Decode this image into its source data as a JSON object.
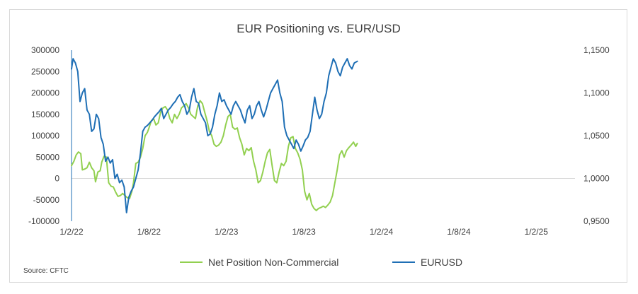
{
  "chart_data": {
    "type": "line",
    "title": "EUR Positioning vs. EUR/USD",
    "source": "Source: CFTC",
    "x_ticks": [
      "1/2/22",
      "1/8/22",
      "1/2/23",
      "1/8/23",
      "1/2/24",
      "1/8/24",
      "1/2/25"
    ],
    "y_left": {
      "ticks": [
        "300000",
        "250000",
        "200000",
        "150000",
        "100000",
        "50000",
        "0",
        "-50000",
        "-100000"
      ],
      "range": [
        -100000,
        300000
      ]
    },
    "y_right": {
      "ticks": [
        "1,1500",
        "1,1000",
        "1,0500",
        "1,0000",
        "0,9500"
      ],
      "range": [
        0.95,
        1.15
      ]
    },
    "legend_position": "bottom",
    "series": [
      {
        "name": "Net Position Non-Commercial",
        "axis": "left",
        "color": "#92d050",
        "x": [
          0,
          0.03,
          0.06,
          0.09,
          0.12,
          0.14,
          0.17,
          0.2,
          0.23,
          0.26,
          0.29,
          0.31,
          0.34,
          0.37,
          0.39,
          0.42,
          0.45,
          0.48,
          0.51,
          0.54,
          0.57,
          0.6,
          0.63,
          0.66,
          0.69,
          0.72,
          0.75,
          0.78,
          0.8,
          0.83,
          0.86,
          0.89,
          0.92,
          0.95,
          0.98,
          1,
          1.03,
          1.06,
          1.09,
          1.12,
          1.15,
          1.18,
          1.21,
          1.24,
          1.27,
          1.3,
          1.33,
          1.36,
          1.39,
          1.42,
          1.45,
          1.48,
          1.51,
          1.54,
          1.57,
          1.6,
          1.63,
          1.66,
          1.69,
          1.72,
          1.75,
          1.78,
          1.81,
          1.84,
          1.87,
          1.9,
          1.93,
          1.96,
          1.99,
          2.02,
          2.05,
          2.08,
          2.11,
          2.14,
          2.17,
          2.2,
          2.23,
          2.26,
          2.29,
          2.32,
          2.35,
          2.38,
          2.41,
          2.44,
          2.47,
          2.5,
          2.53,
          2.56,
          2.59,
          2.62,
          2.65,
          2.68,
          2.71,
          2.74,
          2.77,
          2.8,
          2.83,
          2.86,
          2.89,
          2.92,
          2.95,
          2.98,
          3.01,
          3.04,
          3.07,
          3.1,
          3.13,
          3.16,
          3.19,
          3.22,
          3.25,
          3.28,
          3.31,
          3.34,
          3.37,
          3.4,
          3.43,
          3.46,
          3.49,
          3.52,
          3.55,
          3.58,
          3.61,
          3.64,
          3.67,
          3.69
        ],
        "values": [
          30000,
          40000,
          55000,
          62000,
          58000,
          20000,
          22000,
          25000,
          38000,
          25000,
          18000,
          -8000,
          15000,
          18000,
          38000,
          52000,
          50000,
          -10000,
          -18000,
          -20000,
          -32000,
          -42000,
          -40000,
          -35000,
          -40000,
          -45000,
          -47000,
          -30000,
          -10000,
          35000,
          38000,
          50000,
          70000,
          100000,
          108000,
          118000,
          135000,
          140000,
          125000,
          130000,
          155000,
          165000,
          168000,
          160000,
          140000,
          130000,
          150000,
          140000,
          150000,
          165000,
          170000,
          175000,
          165000,
          150000,
          145000,
          140000,
          170000,
          182000,
          175000,
          155000,
          135000,
          110000,
          100000,
          80000,
          75000,
          78000,
          85000,
          100000,
          125000,
          145000,
          150000,
          120000,
          115000,
          118000,
          95000,
          80000,
          55000,
          70000,
          65000,
          72000,
          40000,
          20000,
          -10000,
          -5000,
          15000,
          40000,
          60000,
          68000,
          30000,
          -5000,
          -10000,
          15000,
          35000,
          30000,
          40000,
          75000,
          95000,
          98000,
          70000,
          60000,
          45000,
          20000,
          -30000,
          -50000,
          -35000,
          -60000,
          -70000,
          -75000,
          -70000,
          -68000,
          -65000,
          -68000,
          -62000,
          -55000,
          -40000,
          -10000,
          20000,
          55000,
          65000,
          50000,
          65000,
          72000,
          78000,
          85000,
          75000,
          82000
        ]
      },
      {
        "name": "EURUSD",
        "axis": "right",
        "color": "#1f6fb5",
        "x": [
          0,
          0.02,
          0.05,
          0.08,
          0.11,
          0.14,
          0.17,
          0.2,
          0.23,
          0.26,
          0.29,
          0.32,
          0.35,
          0.38,
          0.41,
          0.44,
          0.47,
          0.5,
          0.53,
          0.56,
          0.59,
          0.62,
          0.65,
          0.68,
          0.71,
          0.74,
          0.77,
          0.8,
          0.83,
          0.86,
          0.89,
          0.92,
          0.95,
          0.98,
          1.01,
          1.04,
          1.07,
          1.1,
          1.13,
          1.16,
          1.19,
          1.22,
          1.25,
          1.28,
          1.31,
          1.34,
          1.37,
          1.4,
          1.43,
          1.46,
          1.49,
          1.52,
          1.55,
          1.58,
          1.61,
          1.64,
          1.67,
          1.7,
          1.73,
          1.76,
          1.79,
          1.82,
          1.85,
          1.88,
          1.91,
          1.94,
          1.97,
          2,
          2.03,
          2.06,
          2.09,
          2.12,
          2.15,
          2.18,
          2.21,
          2.24,
          2.27,
          2.3,
          2.33,
          2.36,
          2.39,
          2.42,
          2.45,
          2.48,
          2.51,
          2.54,
          2.57,
          2.6,
          2.63,
          2.66,
          2.69,
          2.72,
          2.75,
          2.78,
          2.81,
          2.84,
          2.87,
          2.9,
          2.93,
          2.96,
          2.99,
          3.02,
          3.05,
          3.08,
          3.11,
          3.14,
          3.17,
          3.2,
          3.23,
          3.26,
          3.29,
          3.32,
          3.35,
          3.38,
          3.41,
          3.44,
          3.47,
          3.5,
          3.53,
          3.56,
          3.59,
          3.62,
          3.65,
          3.69
        ],
        "values": [
          1.128,
          1.14,
          1.135,
          1.125,
          1.09,
          1.1,
          1.105,
          1.08,
          1.075,
          1.055,
          1.058,
          1.075,
          1.07,
          1.048,
          1.04,
          1.02,
          1.025,
          1.018,
          1.022,
          1.0,
          1.005,
          0.995,
          0.998,
          0.99,
          0.96,
          0.978,
          0.985,
          0.99,
          1.0,
          1.01,
          1.03,
          1.055,
          1.06,
          1.062,
          1.065,
          1.068,
          1.072,
          1.075,
          1.078,
          1.082,
          1.07,
          1.075,
          1.08,
          1.083,
          1.087,
          1.09,
          1.095,
          1.098,
          1.09,
          1.085,
          1.075,
          1.08,
          1.095,
          1.105,
          1.09,
          1.088,
          1.075,
          1.07,
          1.065,
          1.05,
          1.052,
          1.06,
          1.075,
          1.085,
          1.1,
          1.09,
          1.092,
          1.085,
          1.08,
          1.075,
          1.085,
          1.09,
          1.085,
          1.08,
          1.072,
          1.065,
          1.08,
          1.085,
          1.07,
          1.075,
          1.085,
          1.09,
          1.08,
          1.072,
          1.08,
          1.09,
          1.1,
          1.105,
          1.11,
          1.115,
          1.1,
          1.09,
          1.06,
          1.05,
          1.045,
          1.04,
          1.035,
          1.045,
          1.04,
          1.032,
          1.038,
          1.045,
          1.048,
          1.055,
          1.075,
          1.095,
          1.08,
          1.07,
          1.075,
          1.09,
          1.1,
          1.12,
          1.13,
          1.14,
          1.135,
          1.125,
          1.12,
          1.13,
          1.135,
          1.14,
          1.132,
          1.128,
          1.135,
          1.137
        ]
      }
    ]
  }
}
